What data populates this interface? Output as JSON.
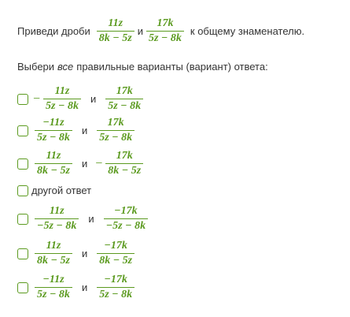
{
  "question": {
    "prefix": "Приведи дроби",
    "fraction1": {
      "num": "11z",
      "den": "8k − 5z"
    },
    "conj": "и",
    "fraction2": {
      "num": "17k",
      "den": "5z − 8k"
    },
    "suffix": "к общему знаменателю."
  },
  "instruction": {
    "before": "Выбери",
    "emphasis": "все",
    "after": "правильные варианты (вариант) ответа:"
  },
  "options": [
    {
      "left": {
        "sign": "−",
        "num": "11z",
        "den": "5z − 8k"
      },
      "conj": "и",
      "right": {
        "num": "17k",
        "den": "5z − 8k"
      }
    },
    {
      "left": {
        "num": "−11z",
        "den": "5z − 8k"
      },
      "conj": "и",
      "right": {
        "num": "17k",
        "den": "5z − 8k"
      }
    },
    {
      "left": {
        "num": "11z",
        "den": "8k − 5z"
      },
      "conj": "и",
      "right": {
        "sign": "−",
        "num": "17k",
        "den": "8k − 5z"
      }
    },
    {
      "text": "другой ответ"
    },
    {
      "left": {
        "num": "11z",
        "den": "−5z − 8k"
      },
      "conj": "и",
      "right": {
        "num": "−17k",
        "den": "−5z − 8k"
      }
    },
    {
      "left": {
        "num": "11z",
        "den": "8k − 5z"
      },
      "conj": "и",
      "right": {
        "num": "−17k",
        "den": "8k − 5z"
      }
    },
    {
      "left": {
        "num": "−11z",
        "den": "5z − 8k"
      },
      "conj": "и",
      "right": {
        "num": "−17k",
        "den": "5z − 8k"
      }
    }
  ]
}
